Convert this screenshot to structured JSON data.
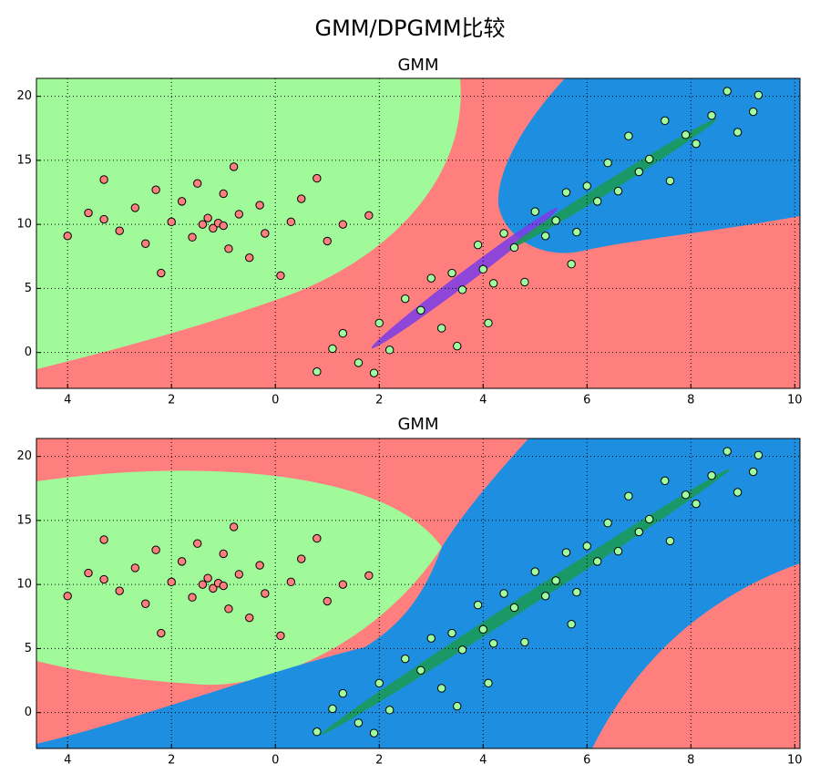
{
  "title": "GMM/DPGMM比较",
  "chart_data": [
    {
      "type": "scatter",
      "title": "GMM",
      "xlim": [
        -4.6,
        10.1
      ],
      "ylim": [
        -2.8,
        21.4
      ],
      "xticks": [
        {
          "value": -4,
          "label": "4"
        },
        {
          "value": -2,
          "label": "2"
        },
        0,
        2,
        4,
        6,
        8,
        10
      ],
      "yticks": [
        0,
        5,
        10,
        15,
        20
      ],
      "grid": true,
      "series": [
        {
          "color": "#ff7f7f",
          "x": [
            -4.0,
            -3.6,
            -3.3,
            -3.3,
            -3.0,
            -2.7,
            -2.5,
            -2.3,
            -2.2,
            -2.0,
            -1.8,
            -1.6,
            -1.5,
            -1.3,
            -1.2,
            -1.1,
            -1.0,
            -0.9,
            -0.8,
            -0.7,
            -0.5,
            -0.3,
            -0.2,
            0.1,
            0.3,
            0.5,
            0.8,
            1.0,
            1.3,
            1.8,
            -1.4,
            -1.0
          ],
          "y": [
            9.1,
            10.9,
            10.4,
            13.5,
            9.5,
            11.3,
            8.5,
            12.7,
            6.2,
            10.2,
            11.8,
            9.0,
            13.2,
            10.5,
            9.7,
            10.1,
            12.4,
            8.1,
            14.5,
            10.8,
            7.4,
            11.5,
            9.3,
            6.0,
            10.2,
            12.0,
            13.6,
            8.7,
            10.0,
            10.7,
            10.0,
            9.9
          ]
        },
        {
          "color": "#a0ff9e",
          "x": [
            0.8,
            1.1,
            1.3,
            1.6,
            1.9,
            2.0,
            2.2,
            2.5,
            2.8,
            3.0,
            3.2,
            3.4,
            3.6,
            3.9,
            4.0,
            4.2,
            4.4,
            4.6,
            4.8,
            5.0,
            5.2,
            5.4,
            5.6,
            5.8,
            6.0,
            6.2,
            6.4,
            6.6,
            6.8,
            7.0,
            7.2,
            7.5,
            7.6,
            7.9,
            8.1,
            8.4,
            8.7,
            8.9,
            9.2,
            9.3,
            4.1,
            5.7,
            3.5
          ],
          "y": [
            -1.5,
            0.3,
            1.5,
            -0.8,
            -1.6,
            2.3,
            0.2,
            4.2,
            3.3,
            5.8,
            1.9,
            6.2,
            4.9,
            8.4,
            6.5,
            5.4,
            9.3,
            8.2,
            5.5,
            11.0,
            9.1,
            10.3,
            12.5,
            9.4,
            13.0,
            11.8,
            14.8,
            12.6,
            16.9,
            14.1,
            15.1,
            18.1,
            13.4,
            17.0,
            16.3,
            18.5,
            20.4,
            17.2,
            18.8,
            20.1,
            2.3,
            6.9,
            0.5
          ]
        }
      ]
    },
    {
      "type": "scatter",
      "title": "GMM",
      "xlim": [
        -4.6,
        10.1
      ],
      "ylim": [
        -2.8,
        21.4
      ],
      "xticks": [
        {
          "value": -4,
          "label": "4"
        },
        {
          "value": -2,
          "label": "2"
        },
        0,
        2,
        4,
        6,
        8,
        10
      ],
      "yticks": [
        0,
        5,
        10,
        15,
        20
      ],
      "grid": true,
      "series": [
        {
          "color": "#ff7f7f",
          "x": [
            -4.0,
            -3.6,
            -3.3,
            -3.3,
            -3.0,
            -2.7,
            -2.5,
            -2.3,
            -2.2,
            -2.0,
            -1.8,
            -1.6,
            -1.5,
            -1.3,
            -1.2,
            -1.1,
            -1.0,
            -0.9,
            -0.8,
            -0.7,
            -0.5,
            -0.3,
            -0.2,
            0.1,
            0.3,
            0.5,
            0.8,
            1.0,
            1.3,
            1.8,
            -1.4,
            -1.0
          ],
          "y": [
            9.1,
            10.9,
            10.4,
            13.5,
            9.5,
            11.3,
            8.5,
            12.7,
            6.2,
            10.2,
            11.8,
            9.0,
            13.2,
            10.5,
            9.7,
            10.1,
            12.4,
            8.1,
            14.5,
            10.8,
            7.4,
            11.5,
            9.3,
            6.0,
            10.2,
            12.0,
            13.6,
            8.7,
            10.0,
            10.7,
            10.0,
            9.9
          ]
        },
        {
          "color": "#a0ff9e",
          "x": [
            0.8,
            1.1,
            1.3,
            1.6,
            1.9,
            2.0,
            2.2,
            2.5,
            2.8,
            3.0,
            3.2,
            3.4,
            3.6,
            3.9,
            4.0,
            4.2,
            4.4,
            4.6,
            4.8,
            5.0,
            5.2,
            5.4,
            5.6,
            5.8,
            6.0,
            6.2,
            6.4,
            6.6,
            6.8,
            7.0,
            7.2,
            7.5,
            7.6,
            7.9,
            8.1,
            8.4,
            8.7,
            8.9,
            9.2,
            9.3,
            4.1,
            5.7,
            3.5
          ],
          "y": [
            -1.5,
            0.3,
            1.5,
            -0.8,
            -1.6,
            2.3,
            0.2,
            4.2,
            3.3,
            5.8,
            1.9,
            6.2,
            4.9,
            8.4,
            6.5,
            5.4,
            9.3,
            8.2,
            5.5,
            11.0,
            9.1,
            10.3,
            12.5,
            9.4,
            13.0,
            11.8,
            14.8,
            12.6,
            16.9,
            14.1,
            15.1,
            18.1,
            13.4,
            17.0,
            16.3,
            18.5,
            20.4,
            17.2,
            18.8,
            20.1,
            2.3,
            6.9,
            0.5
          ]
        }
      ]
    }
  ]
}
